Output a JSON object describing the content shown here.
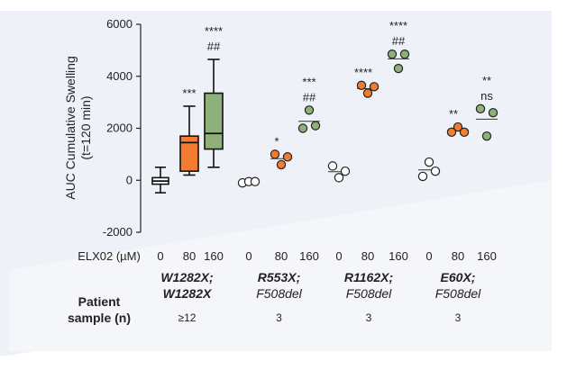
{
  "chart_data": {
    "type": "box_and_scatter",
    "ylabel": [
      "AUC Cumulative Swelling",
      "(t=120 min)"
    ],
    "ylim": [
      -2000,
      6000
    ],
    "yticks": [
      -2000,
      0,
      2000,
      4000,
      6000
    ],
    "ytick_labels": [
      "-2000",
      "0",
      "2000",
      "4000",
      "6000"
    ],
    "x_row_label": "ELX02 (µM)",
    "groups": [
      {
        "name_line1": "W1282X;",
        "name_line2": "W1282X",
        "n_label": "≥12",
        "style": "box",
        "doses": [
          {
            "dose": "0",
            "color": "#ffffff",
            "stats": {
              "min": -480,
              "q1": -150,
              "median": -30,
              "q3": 100,
              "max": 500
            },
            "sig": []
          },
          {
            "dose": "80",
            "color": "#f47c30",
            "stats": {
              "min": 200,
              "q1": 350,
              "median": 1450,
              "q3": 1700,
              "max": 2850
            },
            "sig": [
              "***"
            ]
          },
          {
            "dose": "160",
            "color": "#8fb07a",
            "stats": {
              "min": 500,
              "q1": 1200,
              "median": 1800,
              "q3": 3350,
              "max": 4650
            },
            "sig": [
              "****",
              "##"
            ]
          }
        ]
      },
      {
        "name_line1": "R553X;",
        "name_line2": "F508del",
        "n_label": "3",
        "style": "points",
        "doses": [
          {
            "dose": "0",
            "color": "#ffffff",
            "points": [
              -100,
              -50,
              -50
            ],
            "mean": -70,
            "sig": []
          },
          {
            "dose": "80",
            "color": "#f47c30",
            "points": [
              1000,
              600,
              900
            ],
            "mean": 830,
            "sig": [
              "*"
            ]
          },
          {
            "dose": "160",
            "color": "#8fb07a",
            "points": [
              2000,
              2700,
              2100
            ],
            "mean": 2270,
            "sig": [
              "***",
              "##"
            ]
          }
        ]
      },
      {
        "name_line1": "R1162X;",
        "name_line2": "F508del",
        "n_label": "3",
        "style": "points",
        "doses": [
          {
            "dose": "0",
            "color": "#ffffff",
            "points": [
              550,
              100,
              350
            ],
            "mean": 330,
            "sig": []
          },
          {
            "dose": "80",
            "color": "#f47c30",
            "points": [
              3650,
              3350,
              3600
            ],
            "mean": 3530,
            "sig": [
              "****"
            ]
          },
          {
            "dose": "160",
            "color": "#8fb07a",
            "points": [
              4850,
              4300,
              4850
            ],
            "mean": 4670,
            "sig": [
              "****",
              "##"
            ]
          }
        ]
      },
      {
        "name_line1": "E60X;",
        "name_line2": "F508del",
        "n_label": "3",
        "style": "points",
        "doses": [
          {
            "dose": "0",
            "color": "#ffffff",
            "points": [
              150,
              700,
              350
            ],
            "mean": 400,
            "sig": []
          },
          {
            "dose": "80",
            "color": "#f47c30",
            "points": [
              1850,
              2050,
              1850
            ],
            "mean": 1920,
            "sig": [
              "**"
            ]
          },
          {
            "dose": "160",
            "color": "#8fb07a",
            "points": [
              2750,
              1700,
              2600
            ],
            "mean": 2350,
            "sig": [
              "**",
              "ns"
            ]
          }
        ]
      }
    ],
    "patient_label": [
      "Patient",
      "sample (n)"
    ]
  }
}
